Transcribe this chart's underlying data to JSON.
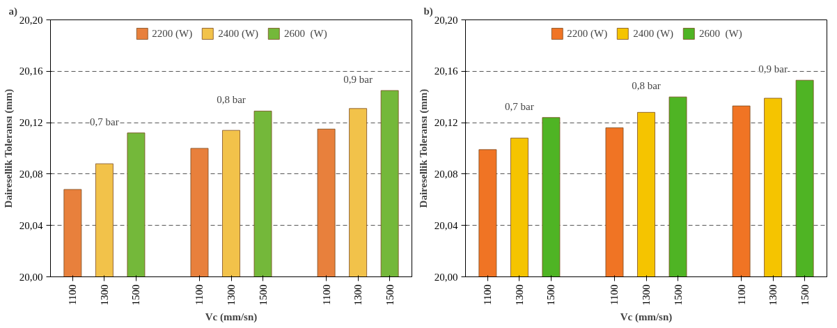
{
  "chart_data": [
    {
      "type": "bar",
      "title": "a)",
      "xlabel": "Vc (mm/sn)",
      "ylabel": "Dairesellik Toleransı (mm)",
      "categories": [
        "1100",
        "1300",
        "1500",
        null,
        "1100",
        "1300",
        "1500",
        null,
        "1100",
        "1300",
        "1500"
      ],
      "series": [
        {
          "name": "2200 (W)",
          "color": "#e8803c",
          "values": [
            20.068,
            null,
            null,
            null,
            20.1,
            null,
            null,
            null,
            20.115,
            null,
            null
          ]
        },
        {
          "name": "2400 (W)",
          "color": "#f2c24a",
          "values": [
            null,
            20.088,
            null,
            null,
            null,
            20.114,
            null,
            null,
            null,
            20.131,
            null
          ]
        },
        {
          "name": "2600  (W)",
          "color": "#74b83a",
          "values": [
            null,
            null,
            20.112,
            null,
            null,
            null,
            20.129,
            null,
            null,
            null,
            20.145
          ]
        }
      ],
      "annotations": [
        "0,7 bar",
        "0,8 bar",
        "0,9 bar"
      ],
      "ylim": [
        20.0,
        20.2
      ],
      "yticks": [
        {
          "value": 20.0,
          "label": "20,00"
        },
        {
          "value": 20.04,
          "label": "20,04"
        },
        {
          "value": 20.08,
          "label": "20,08"
        },
        {
          "value": 20.12,
          "label": "20,12"
        },
        {
          "value": 20.16,
          "label": "20,16"
        },
        {
          "value": 20.2,
          "label": "20,20"
        }
      ],
      "grid": "y",
      "legend": "top"
    },
    {
      "type": "bar",
      "title": "b)",
      "xlabel": "Vc (mm/sn)",
      "ylabel": "Dairesellik Toleransı (mm)",
      "categories": [
        "1100",
        "1300",
        "1500",
        null,
        "1100",
        "1300",
        "1500",
        null,
        "1100",
        "1300",
        "1500"
      ],
      "series": [
        {
          "name": "2200 (W)",
          "color": "#f07424",
          "values": [
            20.099,
            null,
            null,
            null,
            20.116,
            null,
            null,
            null,
            20.133,
            null,
            null
          ]
        },
        {
          "name": "2400 (W)",
          "color": "#f5c400",
          "values": [
            null,
            20.108,
            null,
            null,
            null,
            20.128,
            null,
            null,
            null,
            20.139,
            null
          ]
        },
        {
          "name": "2600  (W)",
          "color": "#4fb424",
          "values": [
            null,
            null,
            20.124,
            null,
            null,
            null,
            20.14,
            null,
            null,
            null,
            20.153
          ]
        }
      ],
      "annotations": [
        "0,7 bar",
        "0,8 bar",
        "0,9 bar"
      ],
      "ylim": [
        20.0,
        20.2
      ],
      "yticks": [
        {
          "value": 20.0,
          "label": "20,00"
        },
        {
          "value": 20.04,
          "label": "20,04"
        },
        {
          "value": 20.08,
          "label": "20,08"
        },
        {
          "value": 20.12,
          "label": "20,12"
        },
        {
          "value": 20.16,
          "label": "20,16"
        },
        {
          "value": 20.2,
          "label": "20,20"
        }
      ],
      "grid": "y",
      "legend": "top"
    }
  ]
}
